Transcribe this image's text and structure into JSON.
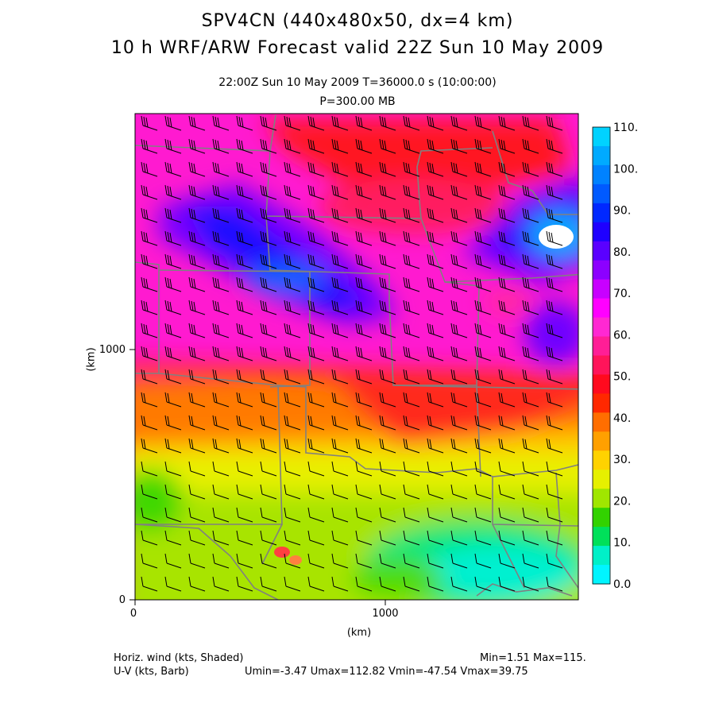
{
  "titles": {
    "line1": "SPV4CN (440x480x50, dx=4 km)",
    "line2": "10 h WRF/ARW Forecast valid 22Z Sun 10 May 2009",
    "line3": "22:00Z Sun 10 May 2009     T=36000.0 s (10:00:00)",
    "line4": "P=300.00 MB"
  },
  "axes": {
    "xlabel": "(km)",
    "ylabel": "(km)",
    "x_ticks": [
      "0",
      "1000"
    ],
    "y_ticks": [
      "0",
      "1000"
    ]
  },
  "legend": {
    "labels": [
      "0.0",
      "10.",
      "20.",
      "30.",
      "40.",
      "50.",
      "60.",
      "70.",
      "80.",
      "90.",
      "100.",
      "110."
    ],
    "colors": [
      "#00f5ff",
      "#00f0c8",
      "#00e05a",
      "#32d200",
      "#a0e600",
      "#e6f000",
      "#ffd200",
      "#ffa000",
      "#ff6e00",
      "#ff2800",
      "#ff0a1e",
      "#ff145a",
      "#ff1e96",
      "#ff28d2",
      "#ff00ff",
      "#c800ff",
      "#8c00ff",
      "#5a00ff",
      "#1e00ff",
      "#0028ff",
      "#005aff",
      "#0082ff",
      "#00aaff",
      "#00d2ff"
    ]
  },
  "footer": {
    "left1": "Horiz. wind (kts, Shaded)",
    "right1": "Min=1.51 Max=115.",
    "left2": "U-V (kts, Barb)",
    "right2": "Umin=-3.47 Umax=112.82 Vmin=-47.54 Vmax=39.75"
  }
}
